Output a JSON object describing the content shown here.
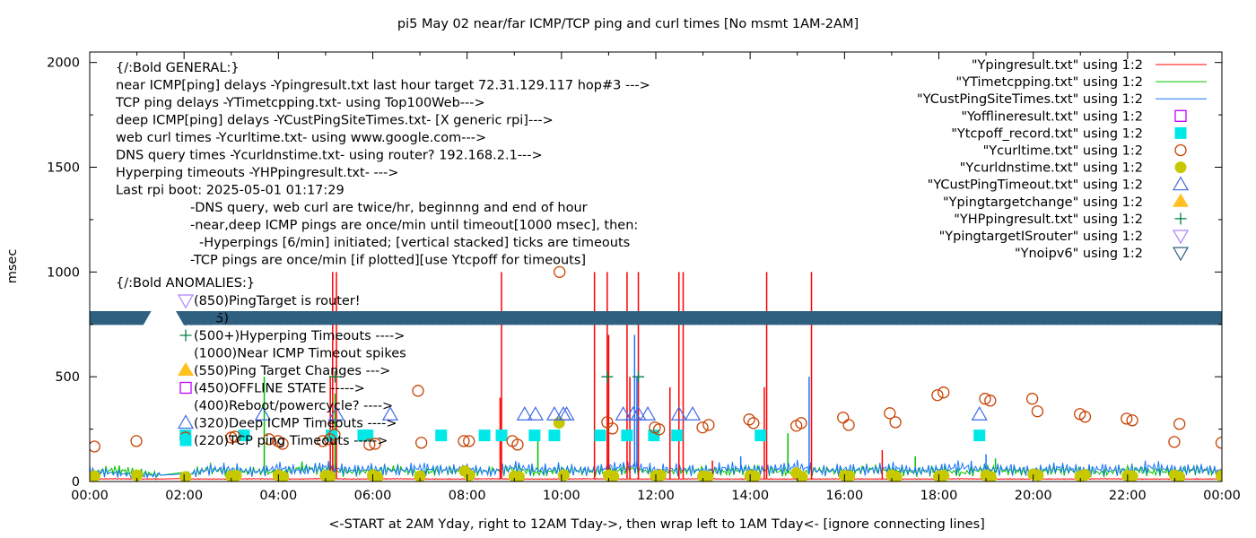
{
  "chart_data": {
    "type": "line",
    "title": "pi5 May 02  near/far ICMP/TCP ping and curl times [No msmt 1AM-2AM]",
    "xlabel": "<-START at 2AM Yday, right to 12AM Tday->, then wrap left to 1AM Tday<- [ignore connecting lines]",
    "ylabel": "msec",
    "xlim": [
      0,
      24
    ],
    "ylim": [
      0,
      2050
    ],
    "x_unit": "hour of day",
    "x_ticks": [
      0,
      2,
      4,
      6,
      8,
      10,
      12,
      14,
      16,
      18,
      20,
      22,
      24
    ],
    "x_tick_labels": [
      "00:00",
      "02:00",
      "04:00",
      "06:00",
      "08:00",
      "10:00",
      "12:00",
      "14:00",
      "16:00",
      "18:00",
      "20:00",
      "22:00",
      "00:00"
    ],
    "y_ticks": [
      0,
      500,
      1000,
      1500,
      2000
    ],
    "y_tick_labels": [
      "0",
      "500",
      "1000",
      "1500",
      "2000"
    ],
    "grid": false,
    "legend_placement": "top-right",
    "series": [
      {
        "name": "\"Ypingresult.txt\" using 1:2",
        "style": "line",
        "color": "#ff0000",
        "x_step": 0.5,
        "values": [
          12,
          13,
          12,
          12,
          12,
          12,
          12,
          13,
          12,
          12,
          14,
          12,
          12,
          13,
          12,
          12,
          12,
          13,
          12,
          12,
          12,
          13,
          12,
          12,
          12,
          12,
          13,
          12,
          12,
          12,
          12,
          12,
          13,
          12,
          12,
          12,
          12,
          13,
          12,
          12,
          12,
          12,
          12,
          13,
          12,
          12,
          12,
          12,
          12
        ],
        "spikes": [
          [
            5.15,
            1000
          ],
          [
            5.23,
            1000
          ],
          [
            5.1,
            500
          ],
          [
            8.73,
            1000
          ],
          [
            8.7,
            400
          ],
          [
            10.7,
            1000
          ],
          [
            10.97,
            1000
          ],
          [
            11.0,
            700
          ],
          [
            11.39,
            1000
          ],
          [
            11.45,
            500
          ],
          [
            11.63,
            1000
          ],
          [
            12.3,
            450
          ],
          [
            12.49,
            1000
          ],
          [
            12.58,
            1000
          ],
          [
            14.35,
            1000
          ],
          [
            14.3,
            450
          ],
          [
            15.3,
            1000
          ],
          [
            13.2,
            100
          ],
          [
            16.8,
            150
          ]
        ]
      },
      {
        "name": "\"YTimetcpping.txt\" using 1:2",
        "style": "line",
        "color": "#00c000",
        "x_step": 0.5,
        "values": [
          40,
          55,
          45,
          30,
          30,
          60,
          45,
          50,
          40,
          65,
          55,
          45,
          50,
          60,
          40,
          55,
          45,
          50,
          60,
          40,
          55,
          50,
          45,
          60,
          40,
          50,
          55,
          45,
          60,
          50,
          40,
          55,
          45,
          60,
          50,
          45,
          55,
          40,
          60,
          50,
          45,
          55,
          50,
          40,
          60,
          45,
          50,
          55,
          45
        ],
        "spikes": [
          [
            3.7,
            500
          ],
          [
            5.2,
            420
          ],
          [
            9.5,
            230
          ],
          [
            14.8,
            230
          ],
          [
            17.5,
            120
          ],
          [
            19.2,
            110
          ]
        ]
      },
      {
        "name": "\"YCustPingSiteTimes.txt\" using 1:2",
        "style": "line",
        "color": "#1a75ff",
        "x_step": 0.5,
        "values": [
          50,
          40,
          30,
          30,
          30,
          55,
          60,
          45,
          65,
          50,
          70,
          55,
          60,
          50,
          65,
          55,
          60,
          45,
          70,
          55,
          60,
          50,
          65,
          70,
          55,
          60,
          50,
          65,
          55,
          60,
          70,
          50,
          60,
          55,
          65,
          50,
          60,
          70,
          55,
          60,
          50,
          65,
          55,
          60,
          50,
          70,
          55,
          60,
          50
        ],
        "spikes": [
          [
            11.55,
            700
          ],
          [
            11.6,
            500
          ],
          [
            15.25,
            500
          ],
          [
            13.8,
            120
          ],
          [
            19.0,
            130
          ]
        ]
      },
      {
        "name": "\"Yofflineresult.txt\" using 1:2",
        "style": "open-square",
        "color": "#c000ff",
        "points": []
      },
      {
        "name": "\"Ytcpoff_record.txt\" using 1:2",
        "style": "filled-square",
        "color": "#00e8e8",
        "points": [
          [
            2.03,
            220
          ],
          [
            3.27,
            220
          ],
          [
            5.13,
            220
          ],
          [
            5.8,
            220
          ],
          [
            5.89,
            220
          ],
          [
            7.45,
            220
          ],
          [
            8.37,
            220
          ],
          [
            8.73,
            220
          ],
          [
            9.43,
            220
          ],
          [
            9.85,
            220
          ],
          [
            10.82,
            220
          ],
          [
            11.39,
            220
          ],
          [
            11.96,
            220
          ],
          [
            12.45,
            220
          ],
          [
            14.22,
            220
          ],
          [
            18.86,
            220
          ]
        ]
      },
      {
        "name": "\"Ycurltime.txt\" using 1:2",
        "style": "open-circle",
        "color": "#c84000",
        "points": [
          [
            0.1,
            167
          ],
          [
            0.99,
            193
          ],
          [
            2.03,
            210
          ],
          [
            3.0,
            210
          ],
          [
            3.08,
            214
          ],
          [
            3.8,
            202
          ],
          [
            3.99,
            193
          ],
          [
            4.09,
            180
          ],
          [
            4.94,
            193
          ],
          [
            5.09,
            202
          ],
          [
            5.19,
            223
          ],
          [
            5.93,
            176
          ],
          [
            6.05,
            180
          ],
          [
            7.03,
            185
          ],
          [
            6.96,
            433
          ],
          [
            7.93,
            193
          ],
          [
            8.04,
            193
          ],
          [
            8.96,
            193
          ],
          [
            9.07,
            176
          ],
          [
            9.96,
            1000
          ],
          [
            10.97,
            283
          ],
          [
            11.08,
            253
          ],
          [
            11.98,
            258
          ],
          [
            12.07,
            249
          ],
          [
            12.99,
            258
          ],
          [
            13.12,
            270
          ],
          [
            13.98,
            296
          ],
          [
            14.07,
            279
          ],
          [
            14.98,
            266
          ],
          [
            15.08,
            279
          ],
          [
            15.97,
            305
          ],
          [
            16.09,
            270
          ],
          [
            16.96,
            326
          ],
          [
            17.08,
            283
          ],
          [
            17.97,
            412
          ],
          [
            18.1,
            425
          ],
          [
            18.98,
            395
          ],
          [
            19.09,
            386
          ],
          [
            19.98,
            395
          ],
          [
            20.09,
            335
          ],
          [
            20.99,
            322
          ],
          [
            21.1,
            309
          ],
          [
            21.98,
            300
          ],
          [
            22.1,
            292
          ],
          [
            22.99,
            189
          ],
          [
            23.1,
            275
          ],
          [
            23.99,
            185
          ]
        ]
      },
      {
        "name": "\"Ycurldnstime.txt\" using 1:2",
        "style": "filled-circle",
        "color": "#c8c800",
        "points": [
          [
            0.1,
            25
          ],
          [
            1.0,
            30
          ],
          [
            2.03,
            22
          ],
          [
            3.0,
            25
          ],
          [
            3.1,
            28
          ],
          [
            4.0,
            30
          ],
          [
            4.1,
            22
          ],
          [
            5.0,
            28
          ],
          [
            5.1,
            24
          ],
          [
            6.0,
            30
          ],
          [
            6.1,
            22
          ],
          [
            7.0,
            25
          ],
          [
            7.95,
            50
          ],
          [
            8.05,
            30
          ],
          [
            9.0,
            25
          ],
          [
            9.1,
            22
          ],
          [
            9.95,
            280
          ],
          [
            10.05,
            30
          ],
          [
            11.0,
            30
          ],
          [
            11.1,
            25
          ],
          [
            12.0,
            28
          ],
          [
            12.1,
            30
          ],
          [
            13.0,
            25
          ],
          [
            13.1,
            22
          ],
          [
            14.0,
            28
          ],
          [
            14.1,
            25
          ],
          [
            14.98,
            40
          ],
          [
            15.1,
            22
          ],
          [
            16.0,
            28
          ],
          [
            16.1,
            25
          ],
          [
            17.0,
            30
          ],
          [
            17.1,
            22
          ],
          [
            18.0,
            25
          ],
          [
            18.1,
            28
          ],
          [
            19.0,
            30
          ],
          [
            19.1,
            22
          ],
          [
            20.0,
            35
          ],
          [
            20.1,
            30
          ],
          [
            21.0,
            25
          ],
          [
            21.1,
            32
          ],
          [
            22.0,
            28
          ],
          [
            22.1,
            25
          ],
          [
            23.0,
            30
          ],
          [
            23.1,
            22
          ],
          [
            23.99,
            28
          ]
        ]
      },
      {
        "name": "\"YCustPingTimeout.txt\" using 1:2",
        "style": "open-triangle-up",
        "color": "#4169e1",
        "points": [
          [
            3.67,
            320
          ],
          [
            5.23,
            320
          ],
          [
            6.37,
            320
          ],
          [
            9.22,
            320
          ],
          [
            9.45,
            320
          ],
          [
            9.85,
            320
          ],
          [
            10.04,
            320
          ],
          [
            10.11,
            320
          ],
          [
            11.31,
            320
          ],
          [
            11.52,
            320
          ],
          [
            11.63,
            320
          ],
          [
            11.83,
            320
          ],
          [
            12.49,
            320
          ],
          [
            12.78,
            320
          ],
          [
            18.86,
            320
          ]
        ]
      },
      {
        "name": "\"Ypingtargetchange\" using 1:2",
        "style": "filled-triangle-up",
        "color": "#ffc020",
        "points": []
      },
      {
        "name": "\"YHPpingresult.txt\" using 1:2",
        "style": "plus",
        "color": "#008040",
        "points": [
          [
            5.2,
            500
          ],
          [
            10.97,
            500
          ],
          [
            11.63,
            500
          ]
        ]
      },
      {
        "name": "\"YpingtargetISrouter\" using 1:2",
        "style": "open-triangle-down",
        "color": "#b080ff",
        "points": []
      },
      {
        "name": "\"Ynoipv6\" using 1:2",
        "style": "open-triangle-down",
        "color": "#306080",
        "value": 785,
        "intervals": [
          [
            0,
            1.15
          ],
          [
            2.0,
            24
          ]
        ]
      }
    ],
    "annotations_general": [
      "{/:Bold GENERAL:}",
      "near ICMP[ping] delays -Ypingresult.txt last hour target 72.31.129.117 hop#3 --->",
      "TCP ping delays -YTimetcpping.txt- using Top100Web--->",
      "deep ICMP[ping] delays -YCustPingSiteTimes.txt- [X generic rpi]--->",
      "web curl times -Ycurltime.txt- using www.google.com--->",
      "DNS query times -Ycurldnstime.txt- using router? 192.168.2.1--->",
      "Hyperping timeouts -YHPpingresult.txt- --->",
      "Last rpi boot: 2025-05-01 01:17:29"
    ],
    "annotations_notes": [
      "-DNS query, web curl are twice/hr, beginnng and end of hour",
      "-near,deep ICMP pings are once/min until timeout[1000 msec], then:",
      "  -Hyperpings [6/min] initiated; [vertical stacked] ticks are timeouts",
      "-TCP pings are once/min [if plotted][use Ytcpoff for timeouts]"
    ],
    "annotations_anomalies_title": "{/:Bold ANOMALIES:}",
    "annotations_anomalies": [
      {
        "text": "(850)PingTarget is router!",
        "symbol": "open-triangle-down",
        "color": "#b080ff"
      },
      {
        "text": "(785)",
        "symbol": "open-triangle-down",
        "color": "#306080"
      },
      {
        "text": "(500+)Hyperping Timeouts ---->",
        "symbol": "plus",
        "color": "#008040"
      },
      {
        "text": "(1000)Near ICMP Timeout spikes",
        "symbol": "",
        "color": ""
      },
      {
        "text": "(550)Ping Target Changes --->",
        "symbol": "filled-triangle-up",
        "color": "#ffc020"
      },
      {
        "text": "(450)OFFLINE STATE ----->",
        "symbol": "open-square",
        "color": "#c000ff"
      },
      {
        "text": "(400)Reboot/powercycle? ---->",
        "symbol": "",
        "color": ""
      },
      {
        "text": "(320)Deep ICMP Timeouts ---->",
        "symbol": "open-triangle-up",
        "color": "#4169e1"
      },
      {
        "text": "(220)TCP ping Timeouts ----->",
        "symbol": "filled-square",
        "color": "#00e8e8"
      }
    ]
  }
}
